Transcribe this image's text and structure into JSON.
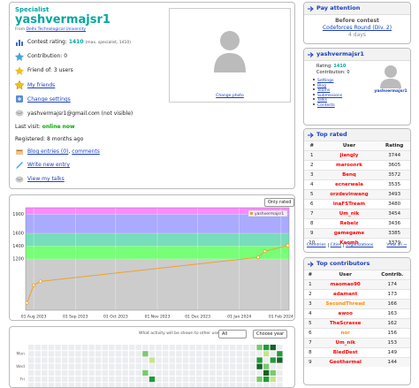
{
  "profile": {
    "rank": "Specialist",
    "handle": "yashvermajsr1",
    "org_prefix": "From",
    "org": "Delhi Technological University",
    "rating_label": "Contest rating:",
    "rating": "1410",
    "max_rating": "(max. specialist, 1410)",
    "contribution_label": "Contribution:",
    "contribution": "0",
    "friend_label": "Friend of:",
    "friends": "3 users",
    "my_friends": "My friends",
    "change_settings": "Change settings",
    "email": "yashvermajsr1@gmail.com (not visible)",
    "last_visit_label": "Last visit:",
    "last_visit": "online now",
    "registered": "Registered: 8 months ago",
    "blog": "Blog entries (0)",
    "comments": "comments",
    "write": "Write new entry",
    "talks": "View my talks",
    "change_photo": "Change photo"
  },
  "chart_data": {
    "type": "line",
    "filter": "Only rated",
    "x": [
      "2023-07-27",
      "2023-08-01",
      "2023-08-06",
      "2024-01-15",
      "2024-01-20",
      "2024-02-06"
    ],
    "series": [
      {
        "name": "yashvermajsr1",
        "color": "#eda22b",
        "values": [
          515,
          790,
          850,
          1225,
          1320,
          1410
        ]
      }
    ],
    "xlim": [
      "2023-07-26",
      "2024-02-07"
    ],
    "xticks": [
      {
        "value": "2023-08-01",
        "label": "01 Aug 2023"
      },
      {
        "value": "2023-09-01",
        "label": "01 Sep 2023"
      },
      {
        "value": "2023-10-01",
        "label": "01 Oct 2023"
      },
      {
        "value": "2023-11-01",
        "label": "01 Nov 2023"
      },
      {
        "value": "2023-12-01",
        "label": "01 Dec 2023"
      },
      {
        "value": "2024-01-01",
        "label": "01 Jan 2024"
      },
      {
        "value": "2024-02-01",
        "label": "01 Feb 2024"
      }
    ],
    "ylim": [
      400,
      2000
    ],
    "yticks": [
      1200,
      1400,
      1600,
      1900
    ],
    "grid": true,
    "bands": [
      {
        "from": 400,
        "to": 1200,
        "color": "#cccccc"
      },
      {
        "from": 1200,
        "to": 1400,
        "color": "#77ff77"
      },
      {
        "from": 1400,
        "to": 1600,
        "color": "#77ddbb"
      },
      {
        "from": 1600,
        "to": 1900,
        "color": "#aaaaff"
      },
      {
        "from": 1900,
        "to": 2000,
        "color": "#ff88ff"
      }
    ],
    "legend": "top-right"
  },
  "activity": {
    "prompt": "What activity will be shown to other users:",
    "filter": "All",
    "year": "Choose year",
    "days": [
      "Mon",
      "Wed",
      "Fri"
    ],
    "colors": [
      "#ebedf0",
      "#c6e48b",
      "#7bc96f",
      "#239a3b",
      "#196127"
    ],
    "weeks": [
      [
        0,
        0,
        0,
        0,
        0,
        0,
        0
      ],
      [
        0,
        0,
        0,
        0,
        0,
        0,
        0
      ],
      [
        0,
        0,
        0,
        0,
        0,
        0,
        0
      ],
      [
        0,
        0,
        0,
        0,
        0,
        0,
        0
      ],
      [
        0,
        0,
        0,
        0,
        0,
        0,
        0
      ],
      [
        0,
        0,
        0,
        0,
        0,
        0,
        0
      ],
      [
        0,
        0,
        0,
        0,
        0,
        0,
        0
      ],
      [
        0,
        0,
        0,
        0,
        0,
        0,
        0
      ],
      [
        0,
        0,
        0,
        0,
        0,
        0,
        0
      ],
      [
        0,
        0,
        0,
        0,
        0,
        0,
        0
      ],
      [
        0,
        0,
        0,
        0,
        0,
        0,
        0
      ],
      [
        0,
        0,
        0,
        0,
        0,
        0,
        0
      ],
      [
        0,
        0,
        0,
        0,
        0,
        0,
        0
      ],
      [
        0,
        0,
        0,
        0,
        0,
        0,
        0
      ],
      [
        0,
        0,
        0,
        0,
        0,
        0,
        0
      ],
      [
        0,
        0,
        0,
        0,
        0,
        0,
        0
      ],
      [
        0,
        0,
        0,
        0,
        0,
        0,
        0
      ],
      [
        0,
        2,
        0,
        0,
        2,
        0,
        0
      ],
      [
        0,
        0,
        1,
        0,
        0,
        3,
        0
      ],
      [
        0,
        0,
        0,
        0,
        0,
        0,
        0
      ],
      [
        0,
        0,
        0,
        0,
        0,
        0,
        0
      ],
      [
        0,
        0,
        0,
        0,
        0,
        0,
        0
      ],
      [
        0,
        0,
        0,
        0,
        0,
        0,
        0
      ],
      [
        0,
        0,
        0,
        0,
        0,
        0,
        0
      ],
      [
        0,
        0,
        0,
        0,
        0,
        0,
        0
      ],
      [
        0,
        0,
        0,
        0,
        0,
        0,
        0
      ],
      [
        0,
        0,
        0,
        0,
        0,
        0,
        0
      ],
      [
        0,
        0,
        0,
        0,
        0,
        0,
        0
      ],
      [
        0,
        0,
        0,
        0,
        0,
        0,
        0
      ],
      [
        0,
        0,
        0,
        0,
        0,
        0,
        0
      ],
      [
        0,
        0,
        0,
        0,
        0,
        0,
        0
      ],
      [
        0,
        0,
        0,
        0,
        0,
        0,
        0
      ],
      [
        0,
        0,
        0,
        0,
        0,
        0,
        0
      ],
      [
        0,
        0,
        0,
        0,
        0,
        0,
        0
      ],
      [
        2,
        0,
        3,
        4,
        0,
        2,
        0
      ],
      [
        3,
        1,
        0,
        2,
        4,
        3,
        0
      ],
      [
        4,
        0,
        3,
        0,
        2,
        1,
        0
      ],
      [
        0,
        3,
        4,
        0,
        0,
        0,
        0
      ]
    ]
  },
  "sidebar": {
    "pay_attention": {
      "title": "Pay attention",
      "before": "Before contest",
      "contest": "Codeforces Round (Div. 2)",
      "when": "4 days"
    },
    "user": {
      "title": "yashvermajsr1",
      "rating_label": "Rating:",
      "rating": "1410",
      "contribution": "Contribution: 0",
      "name": "yashvermajsr1",
      "links": [
        "Settings",
        "Blog",
        "Teams",
        "Submissions",
        "Talks",
        "Contests"
      ]
    },
    "top_rated": {
      "title": "Top rated",
      "columns": [
        "#",
        "User",
        "Rating"
      ],
      "rows": [
        [
          "1",
          "jiangly",
          "3744"
        ],
        [
          "2",
          "maroonrk",
          "3605"
        ],
        [
          "3",
          "Benq",
          "3572"
        ],
        [
          "4",
          "ecnerwala",
          "3535"
        ],
        [
          "5",
          "orzdevinwang",
          "3493"
        ],
        [
          "6",
          "inaFSTream",
          "3480"
        ],
        [
          "7",
          "Um_nik",
          "3454"
        ],
        [
          "8",
          "Rebelz",
          "3436"
        ],
        [
          "9",
          "gamegame",
          "3385"
        ],
        [
          "10",
          "Kaomh",
          "3379"
        ]
      ],
      "footer_links": [
        "Countries",
        "Cities",
        "Organizations"
      ],
      "view_all": "View all →"
    },
    "top_contributors": {
      "title": "Top contributors",
      "columns": [
        "#",
        "User",
        "Contrib."
      ],
      "rows": [
        [
          "1",
          "maomao90",
          "174"
        ],
        [
          "2",
          "adamant",
          "173"
        ],
        [
          "3",
          "SecondThread",
          "166"
        ],
        [
          "4",
          "awoo",
          "163"
        ],
        [
          "5",
          "TheScrasse",
          "162"
        ],
        [
          "6",
          "nor",
          "156"
        ],
        [
          "7",
          "Um_nik",
          "153"
        ],
        [
          "8",
          "BledDest",
          "149"
        ],
        [
          "9",
          "Geothermal",
          "144"
        ]
      ],
      "colors": [
        "#ff0000",
        "#ff0000",
        "#ff8c00",
        "#ff0000",
        "#ff0000",
        "#ff8c00",
        "#ff0000",
        "#ff0000",
        "#ff0000"
      ]
    }
  }
}
